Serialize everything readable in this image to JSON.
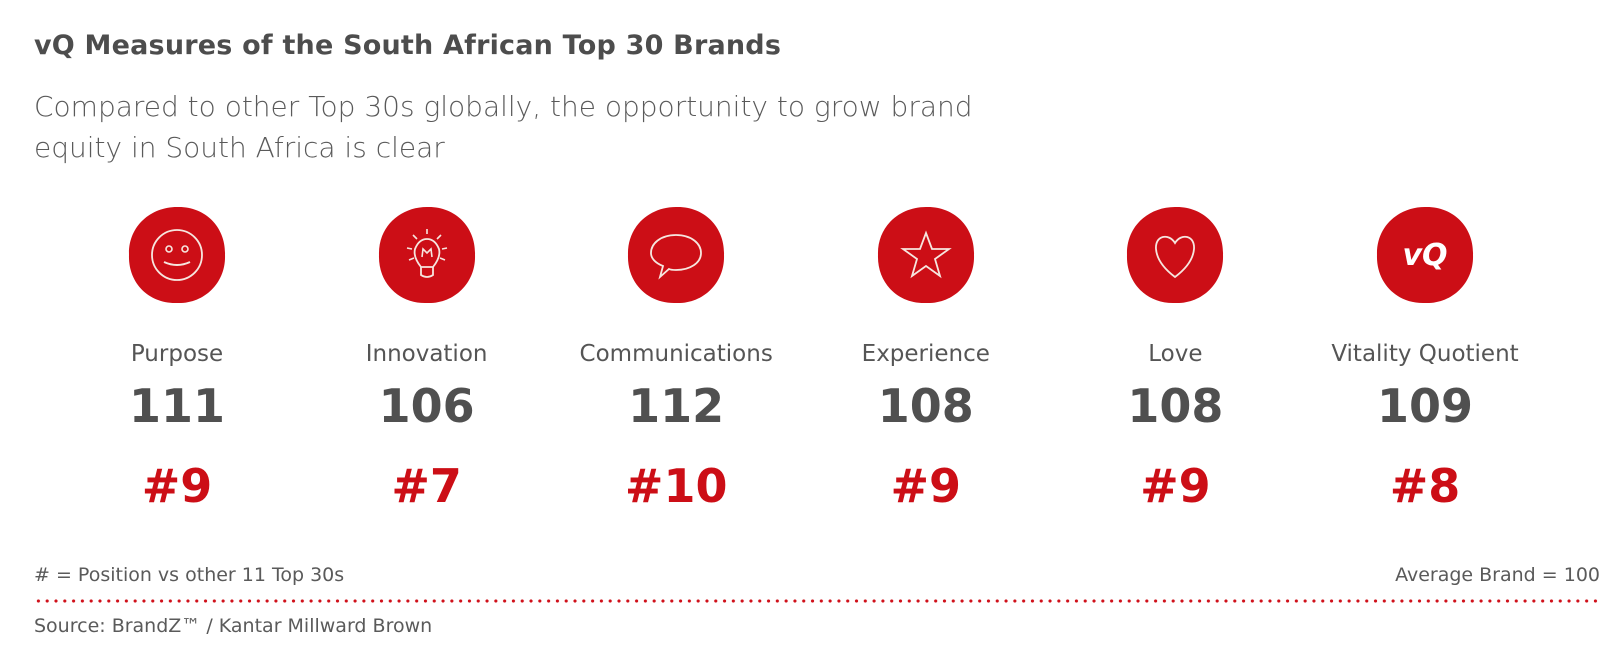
{
  "title": "vQ Measures of the South African Top 30 Brands",
  "subtitle": "Compared to other Top 30s globally, the opportunity to grow brand equity in South Africa is clear",
  "colors": {
    "accent": "#cc0e16",
    "text": "#555555"
  },
  "measures": [
    {
      "label": "Purpose",
      "value": "111",
      "rank": "#9",
      "icon": "smiley-icon"
    },
    {
      "label": "Innovation",
      "value": "106",
      "rank": "#7",
      "icon": "lightbulb-icon"
    },
    {
      "label": "Communications",
      "value": "112",
      "rank": "#10",
      "icon": "speech-bubble-icon"
    },
    {
      "label": "Experience",
      "value": "108",
      "rank": "#9",
      "icon": "star-icon"
    },
    {
      "label": "Love",
      "value": "108",
      "rank": "#9",
      "icon": "heart-icon"
    },
    {
      "label": "Vitality Quotient",
      "value": "109",
      "rank": "#8",
      "icon": "vq-logo-icon"
    }
  ],
  "footer": {
    "rank_note": "# = Position vs other 11 Top 30s",
    "average_note": "Average Brand = 100",
    "source": "Source: BrandZ™ / Kantar Millward Brown"
  },
  "chart_data": {
    "type": "table",
    "title": "vQ Measures of the South African Top 30 Brands",
    "categories": [
      "Purpose",
      "Innovation",
      "Communications",
      "Experience",
      "Love",
      "Vitality Quotient"
    ],
    "series": [
      {
        "name": "Index",
        "values": [
          111,
          106,
          112,
          108,
          108,
          109
        ]
      },
      {
        "name": "Position",
        "values": [
          9,
          7,
          10,
          9,
          9,
          8
        ]
      }
    ]
  }
}
